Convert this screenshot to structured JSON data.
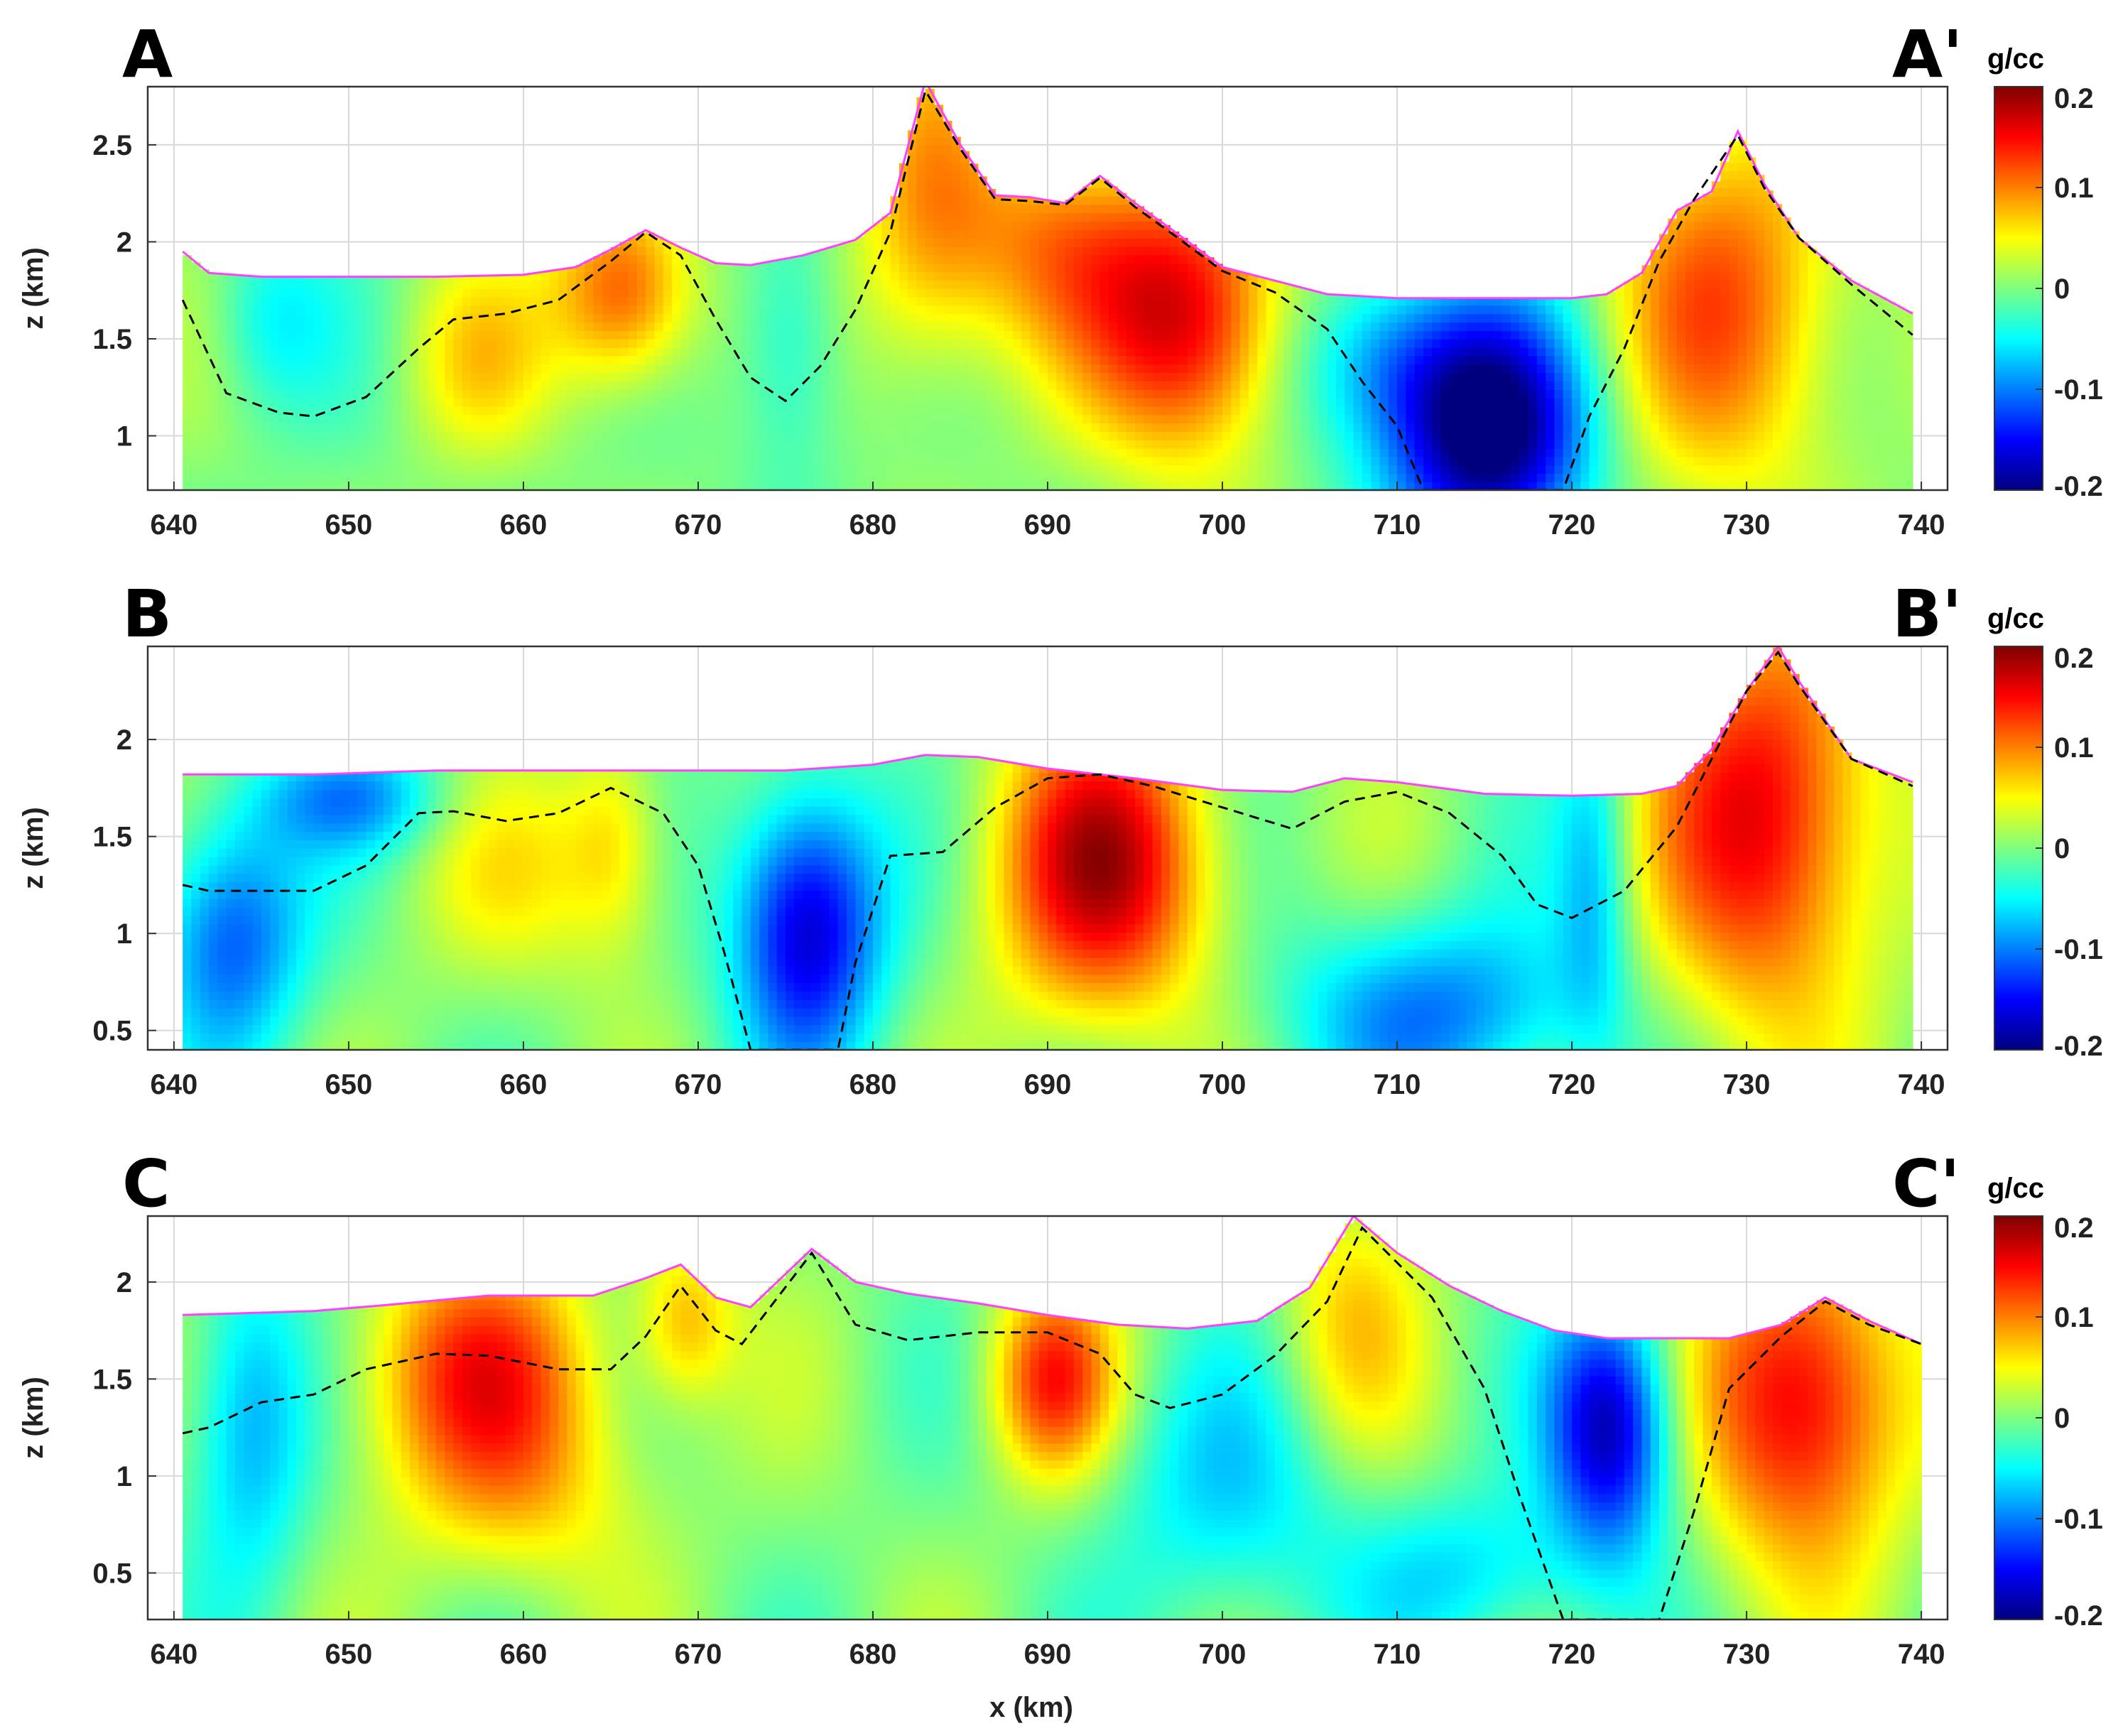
{
  "figure": {
    "x_axis_label": "x (km)"
  },
  "colormap": {
    "name": "jet",
    "stops": [
      "#00007f",
      "#0000ff",
      "#007fff",
      "#00ffff",
      "#7fff7f",
      "#ffff00",
      "#ff7f00",
      "#ff0000",
      "#7f0000"
    ],
    "topography_line_color": "#ff40ff",
    "contact_line_color": "#000000"
  },
  "chart_data": [
    {
      "type": "heatmap",
      "panel": "A",
      "left_label": "A",
      "right_label": "A'",
      "xlabel": "",
      "ylabel": "z (km)",
      "xlim": [
        638.5,
        741.5
      ],
      "ylim": [
        0.72,
        2.8
      ],
      "xticks": [
        640,
        650,
        660,
        670,
        680,
        690,
        700,
        710,
        720,
        730,
        740
      ],
      "xtick_labels": [
        "640",
        "650",
        "660",
        "670",
        "680",
        "690",
        "700",
        "710",
        "720",
        "730",
        "740"
      ],
      "yticks": [
        1,
        1.5,
        2,
        2.5
      ],
      "ytick_labels": [
        "1",
        "1.5",
        "2",
        "2.5"
      ],
      "grid": true,
      "colorbar": {
        "unit": "g/cc",
        "range": [
          -0.2,
          0.2
        ],
        "ticks": [
          0.2,
          0.1,
          0,
          -0.1,
          -0.2
        ],
        "tick_labels": [
          "0.2",
          "0.1",
          "0",
          "-0.1",
          "-0.2"
        ]
      },
      "topography": {
        "x": [
          640.5,
          642,
          645,
          650,
          655,
          660,
          663,
          665,
          667,
          669,
          671,
          673,
          676,
          679,
          681,
          683,
          685,
          687,
          689,
          691,
          693,
          695,
          697,
          700,
          703,
          706,
          710,
          715,
          720,
          722,
          724,
          726,
          728,
          729.5,
          731,
          733,
          736,
          739.5
        ],
        "z": [
          1.95,
          1.84,
          1.82,
          1.82,
          1.82,
          1.83,
          1.87,
          1.96,
          2.06,
          1.97,
          1.89,
          1.88,
          1.93,
          2.01,
          2.15,
          2.83,
          2.5,
          2.24,
          2.23,
          2.2,
          2.34,
          2.2,
          2.07,
          1.87,
          1.8,
          1.73,
          1.71,
          1.71,
          1.71,
          1.73,
          1.84,
          2.16,
          2.26,
          2.57,
          2.3,
          2.02,
          1.8,
          1.63
        ]
      },
      "contact": {
        "x": [
          640.5,
          643,
          646,
          648,
          651,
          654,
          656,
          659,
          662,
          665,
          667,
          669,
          671,
          673,
          675,
          677,
          679,
          681,
          683,
          685,
          687,
          689,
          691,
          693,
          695,
          697,
          700,
          703,
          706,
          708,
          710,
          711.5,
          719.5,
          721,
          723,
          725,
          727,
          729.5,
          731,
          733,
          736,
          739.5
        ],
        "z": [
          1.7,
          1.22,
          1.12,
          1.1,
          1.2,
          1.45,
          1.6,
          1.63,
          1.7,
          1.9,
          2.05,
          1.93,
          1.6,
          1.3,
          1.18,
          1.36,
          1.65,
          2.05,
          2.78,
          2.48,
          2.22,
          2.21,
          2.19,
          2.33,
          2.18,
          2.05,
          1.85,
          1.74,
          1.55,
          1.28,
          1.05,
          0.72,
          0.72,
          1.1,
          1.45,
          1.9,
          2.22,
          2.55,
          2.28,
          2.02,
          1.78,
          1.52
        ]
      },
      "anomalies": [
        {
          "x": 645,
          "z": 1.6,
          "value": -0.05,
          "sx": 2.5,
          "sz": 0.35
        },
        {
          "x": 657,
          "z": 1.4,
          "value": 0.05,
          "sx": 3,
          "sz": 0.35
        },
        {
          "x": 665.5,
          "z": 1.75,
          "value": 0.13,
          "sx": 2.8,
          "sz": 0.35
        },
        {
          "x": 675,
          "z": 1.5,
          "value": -0.06,
          "sx": 2.2,
          "sz": 0.5
        },
        {
          "x": 683,
          "z": 2.1,
          "value": 0.09,
          "sx": 3,
          "sz": 0.6
        },
        {
          "x": 690,
          "z": 2.0,
          "value": 0.08,
          "sx": 4,
          "sz": 0.4
        },
        {
          "x": 698,
          "z": 1.6,
          "value": 0.17,
          "sx": 4,
          "sz": 0.5
        },
        {
          "x": 715,
          "z": 1.0,
          "value": -0.21,
          "sx": 4,
          "sz": 0.45
        },
        {
          "x": 709,
          "z": 1.4,
          "value": -0.09,
          "sx": 4,
          "sz": 0.35
        },
        {
          "x": 729,
          "z": 1.7,
          "value": 0.11,
          "sx": 5,
          "sz": 0.7
        }
      ]
    },
    {
      "type": "heatmap",
      "panel": "B",
      "left_label": "B",
      "right_label": "B'",
      "xlabel": "",
      "ylabel": "z (km)",
      "xlim": [
        638.5,
        741.5
      ],
      "ylim": [
        0.4,
        2.48
      ],
      "xticks": [
        640,
        650,
        660,
        670,
        680,
        690,
        700,
        710,
        720,
        730,
        740
      ],
      "xtick_labels": [
        "640",
        "650",
        "660",
        "670",
        "680",
        "690",
        "700",
        "710",
        "720",
        "730",
        "740"
      ],
      "yticks": [
        0.5,
        1,
        1.5,
        2
      ],
      "ytick_labels": [
        "0.5",
        "1",
        "1.5",
        "2"
      ],
      "grid": true,
      "colorbar": {
        "unit": "g/cc",
        "range": [
          -0.2,
          0.2
        ],
        "ticks": [
          0.2,
          0.1,
          0,
          -0.1,
          -0.2
        ],
        "tick_labels": [
          "0.2",
          "0.1",
          "0",
          "-0.1",
          "-0.2"
        ]
      },
      "topography": {
        "x": [
          640.5,
          648,
          655,
          665,
          675,
          680,
          683,
          686,
          690,
          695,
          700,
          704,
          707,
          710,
          715,
          720,
          724,
          726,
          728,
          730,
          731.8,
          733,
          736,
          739.5
        ],
        "z": [
          1.82,
          1.82,
          1.84,
          1.84,
          1.84,
          1.87,
          1.92,
          1.91,
          1.85,
          1.8,
          1.74,
          1.73,
          1.8,
          1.78,
          1.72,
          1.71,
          1.72,
          1.76,
          1.95,
          2.25,
          2.48,
          2.3,
          1.9,
          1.78
        ]
      },
      "contact": {
        "x": [
          640.5,
          642,
          648,
          651,
          654,
          656,
          659,
          662,
          665,
          668,
          670,
          671.5,
          673,
          678,
          679,
          681,
          684,
          687,
          690,
          693,
          696,
          700,
          704,
          707,
          710,
          713,
          716,
          718,
          720,
          723,
          726,
          728,
          730,
          731.8,
          733,
          736,
          739.5
        ],
        "z": [
          1.25,
          1.22,
          1.22,
          1.35,
          1.62,
          1.63,
          1.58,
          1.62,
          1.75,
          1.62,
          1.35,
          0.9,
          0.4,
          0.4,
          0.85,
          1.4,
          1.42,
          1.65,
          1.8,
          1.82,
          1.76,
          1.65,
          1.54,
          1.68,
          1.73,
          1.62,
          1.4,
          1.15,
          1.08,
          1.22,
          1.55,
          1.9,
          2.25,
          2.45,
          2.28,
          1.9,
          1.76
        ]
      },
      "anomalies": [
        {
          "x": 643,
          "z": 1.0,
          "value": -0.12,
          "sx": 3,
          "sz": 0.45
        },
        {
          "x": 650,
          "z": 1.7,
          "value": -0.08,
          "sx": 4,
          "sz": 0.2
        },
        {
          "x": 665,
          "z": 1.5,
          "value": 0.06,
          "sx": 2,
          "sz": 0.4
        },
        {
          "x": 660,
          "z": 1.3,
          "value": 0.04,
          "sx": 5,
          "sz": 0.4
        },
        {
          "x": 676,
          "z": 1.05,
          "value": -0.18,
          "sx": 3,
          "sz": 0.5
        },
        {
          "x": 693,
          "z": 1.35,
          "value": 0.17,
          "sx": 4.5,
          "sz": 0.55
        },
        {
          "x": 712,
          "z": 0.6,
          "value": -0.1,
          "sx": 6,
          "sz": 0.35
        },
        {
          "x": 721,
          "z": 1.3,
          "value": -0.07,
          "sx": 1.5,
          "sz": 0.6
        },
        {
          "x": 731,
          "z": 1.6,
          "value": 0.16,
          "sx": 4.5,
          "sz": 0.75
        }
      ]
    },
    {
      "type": "heatmap",
      "panel": "C",
      "left_label": "C",
      "right_label": "C'",
      "xlabel": "x (km)",
      "ylabel": "z (km)",
      "xlim": [
        638.5,
        741.5
      ],
      "ylim": [
        0.26,
        2.34
      ],
      "xticks": [
        640,
        650,
        660,
        670,
        680,
        690,
        700,
        710,
        720,
        730,
        740
      ],
      "xtick_labels": [
        "640",
        "650",
        "660",
        "670",
        "680",
        "690",
        "700",
        "710",
        "720",
        "730",
        "740"
      ],
      "yticks": [
        0.5,
        1,
        1.5,
        2
      ],
      "ytick_labels": [
        "0.5",
        "1",
        "1.5",
        "2"
      ],
      "grid": true,
      "colorbar": {
        "unit": "g/cc",
        "range": [
          -0.2,
          0.2
        ],
        "ticks": [
          0.2,
          0.1,
          0,
          -0.1,
          -0.2
        ],
        "tick_labels": [
          "0.2",
          "0.1",
          "0",
          "-0.1",
          "-0.2"
        ]
      },
      "topography": {
        "x": [
          640.5,
          648,
          652,
          658,
          664,
          667,
          669,
          671,
          673,
          676.5,
          679,
          682,
          686,
          690,
          694,
          698,
          702,
          705,
          707.5,
          710,
          713,
          716,
          719,
          722,
          726,
          729,
          732,
          734.5,
          737,
          740
        ],
        "z": [
          1.83,
          1.85,
          1.88,
          1.93,
          1.93,
          2.02,
          2.09,
          1.92,
          1.87,
          2.17,
          2.0,
          1.94,
          1.89,
          1.83,
          1.78,
          1.76,
          1.8,
          1.97,
          2.34,
          2.15,
          1.98,
          1.85,
          1.75,
          1.71,
          1.71,
          1.71,
          1.78,
          1.92,
          1.8,
          1.68
        ]
      },
      "contact": {
        "x": [
          640.5,
          642,
          645,
          648,
          651,
          655,
          658,
          662,
          665,
          667,
          669,
          671,
          672.5,
          676.5,
          679,
          682,
          686,
          690,
          693,
          695,
          697,
          700,
          703,
          706,
          708,
          712,
          715,
          717,
          719.5,
          725,
          727,
          729,
          732,
          734.5,
          737,
          740
        ],
        "z": [
          1.22,
          1.25,
          1.38,
          1.42,
          1.55,
          1.63,
          1.62,
          1.55,
          1.55,
          1.72,
          1.98,
          1.75,
          1.68,
          2.15,
          1.78,
          1.7,
          1.74,
          1.74,
          1.63,
          1.42,
          1.35,
          1.42,
          1.62,
          1.9,
          2.28,
          1.92,
          1.45,
          0.9,
          0.26,
          0.26,
          0.82,
          1.45,
          1.72,
          1.9,
          1.78,
          1.68
        ]
      },
      "anomalies": [
        {
          "x": 644,
          "z": 1.3,
          "value": -0.09,
          "sx": 2.5,
          "sz": 0.6
        },
        {
          "x": 657,
          "z": 1.55,
          "value": 0.12,
          "sx": 5,
          "sz": 0.45
        },
        {
          "x": 660,
          "z": 0.9,
          "value": 0.05,
          "sx": 5,
          "sz": 0.4
        },
        {
          "x": 669,
          "z": 1.8,
          "value": 0.08,
          "sx": 2,
          "sz": 0.3
        },
        {
          "x": 690,
          "z": 1.5,
          "value": 0.13,
          "sx": 2.5,
          "sz": 0.35
        },
        {
          "x": 700,
          "z": 0.9,
          "value": -0.06,
          "sx": 5,
          "sz": 0.5
        },
        {
          "x": 707,
          "z": 1.8,
          "value": 0.06,
          "sx": 3,
          "sz": 0.5
        },
        {
          "x": 722,
          "z": 1.25,
          "value": -0.18,
          "sx": 2.5,
          "sz": 0.45
        },
        {
          "x": 733,
          "z": 1.4,
          "value": 0.17,
          "sx": 4,
          "sz": 0.6
        },
        {
          "x": 714,
          "z": 0.5,
          "value": -0.06,
          "sx": 5,
          "sz": 0.3
        }
      ]
    }
  ]
}
